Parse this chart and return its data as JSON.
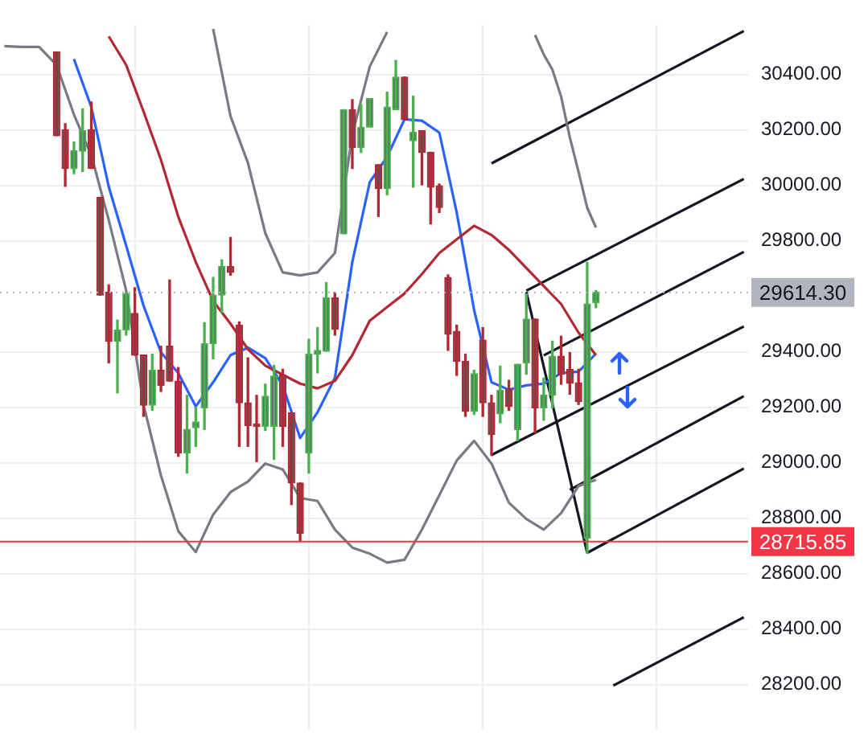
{
  "chart_data": {
    "type": "candlestick",
    "categories": [
      null,
      null,
      null,
      null,
      null,
      null,
      null,
      null,
      null,
      null,
      null,
      null,
      null,
      null,
      null,
      null,
      null,
      null,
      null,
      null,
      null,
      null,
      null,
      null,
      null,
      null,
      null,
      null,
      null,
      null,
      null,
      null,
      null,
      null,
      null,
      null,
      null,
      null,
      null,
      null,
      null,
      null,
      null,
      null,
      null,
      null,
      null,
      null,
      null,
      null,
      null,
      null,
      null,
      null,
      null,
      null,
      null,
      null,
      null,
      null,
      null,
      null,
      null,
      null,
      null,
      null,
      null,
      null,
      null,
      null,
      null,
      null,
      null,
      null,
      null,
      null,
      null,
      null,
      null,
      null,
      null,
      null,
      null,
      null,
      null,
      null
    ],
    "ohlc": [
      null,
      null,
      null,
      null,
      null,
      null,
      [
        30481,
        30481,
        30179,
        30179
      ],
      [
        30200,
        30222,
        29996,
        30061
      ],
      [
        30060,
        30156,
        30042,
        30125
      ],
      [
        30123,
        30276,
        30050,
        30197
      ],
      [
        30200,
        30300,
        30061,
        30061
      ],
      [
        29957,
        29957,
        29604,
        29604
      ],
      [
        29614,
        29641,
        29360,
        29438
      ],
      [
        29438,
        29514,
        29252,
        29478
      ],
      [
        29478,
        29610,
        29460,
        29610
      ],
      [
        29538,
        29631,
        29388,
        29388
      ],
      [
        29388,
        29388,
        29167,
        29207
      ],
      [
        29207,
        29391,
        29189,
        29333
      ],
      [
        29333,
        29420,
        29257,
        29279
      ],
      [
        29420,
        29659,
        29294,
        29294
      ],
      [
        29294,
        29343,
        29023,
        29035
      ],
      [
        29035,
        29243,
        28963,
        29120
      ],
      [
        29126,
        29198,
        29059,
        29147
      ],
      [
        29198,
        29505,
        29120,
        29429
      ],
      [
        29429,
        29668,
        29375,
        29604
      ],
      [
        29604,
        29731,
        29541,
        29707
      ],
      [
        29707,
        29812,
        29676,
        29686
      ],
      [
        29496,
        29508,
        29059,
        29216
      ],
      [
        29216,
        29378,
        29059,
        29134
      ],
      [
        29140,
        29243,
        29004,
        29131
      ],
      [
        29131,
        29283,
        29117,
        29240
      ],
      [
        29131,
        29351,
        29012,
        29312
      ],
      [
        29316,
        29337,
        29059,
        29131
      ],
      [
        29180,
        29180,
        28849,
        28927
      ],
      [
        28927,
        28927,
        28716,
        28746
      ],
      [
        29035,
        29445,
        28963,
        29391
      ],
      [
        29391,
        29487,
        29324,
        29405
      ],
      [
        29402,
        29649,
        29402,
        29595
      ],
      [
        29595,
        29614,
        29460,
        29481
      ],
      [
        29825,
        30273,
        29825,
        30273
      ],
      [
        30273,
        30309,
        30061,
        30137
      ],
      [
        30137,
        30291,
        30119,
        30210
      ],
      [
        30210,
        30313,
        30210,
        30313
      ],
      [
        30074,
        30074,
        29888,
        29988
      ],
      [
        29988,
        30336,
        29966,
        30282
      ],
      [
        30273,
        30450,
        30273,
        30390
      ],
      [
        30390,
        30390,
        30237,
        30237
      ],
      [
        30161,
        30321,
        29993,
        30191
      ],
      [
        30197,
        30197,
        30002,
        30119
      ],
      [
        30119,
        30119,
        29861,
        29993
      ],
      [
        29998,
        30005,
        29902,
        29920
      ],
      [
        29668,
        29677,
        29405,
        29463
      ],
      [
        29474,
        29496,
        29315,
        29366
      ],
      [
        29366,
        29391,
        29167,
        29185
      ],
      [
        29185,
        29333,
        29174,
        29321
      ],
      [
        29442,
        29487,
        29167,
        29216
      ],
      [
        29216,
        29243,
        29026,
        29102
      ],
      [
        29176,
        29348,
        29144,
        29261
      ],
      [
        29265,
        29297,
        29189,
        29203
      ],
      [
        29120,
        29355,
        29080,
        29355
      ],
      [
        29360,
        29608,
        29319,
        29518
      ],
      [
        29518,
        29518,
        29107,
        29198
      ],
      [
        29198,
        29306,
        29153,
        29243
      ],
      [
        29243,
        29438,
        29198,
        29384
      ],
      [
        29384,
        29456,
        29283,
        29319
      ],
      [
        29337,
        29397,
        29247,
        29286
      ],
      [
        29288,
        29337,
        29210,
        29221
      ],
      [
        28728,
        29722,
        28674,
        29572
      ],
      [
        29577,
        29620,
        29559,
        29614.3
      ],
      null,
      null,
      null,
      null,
      null,
      null,
      null,
      null,
      null,
      null,
      null,
      null,
      null,
      null,
      null,
      null,
      null
    ],
    "series": [
      {
        "type": "line",
        "color": "#787b86",
        "values": [
          30502,
          null,
          30499,
          null,
          30499,
          null,
          30434,
          null,
          30255,
          null,
          30108,
          null,
          29875,
          null,
          29621,
          null,
          29209,
          null,
          28954,
          null,
          28753,
          null,
          28678,
          null,
          28813,
          null,
          28894,
          null,
          28932,
          null,
          28997,
          null,
          28976,
          null,
          28873,
          null,
          28862,
          null,
          28759,
          null,
          28694,
          null,
          28672,
          null,
          28640,
          null,
          28650,
          null,
          28759,
          null,
          28883,
          null,
          29008,
          null,
          29079,
          null,
          28997,
          null,
          28856,
          null,
          28797,
          null,
          28759,
          null,
          28818,
          null,
          28916,
          null,
          28938,
          null,
          null,
          null,
          null,
          null,
          null,
          null,
          null,
          null,
          null,
          null,
          null,
          null,
          null,
          null,
          null,
          null
        ]
      },
      {
        "type": "line",
        "color": "#787b86",
        "values": [
          null,
          null,
          null,
          null,
          null,
          null,
          null,
          null,
          null,
          null,
          null,
          null,
          null,
          null,
          null,
          null,
          null,
          null,
          null,
          null,
          null,
          null,
          null,
          null,
          30564,
          null,
          30249,
          null,
          30081,
          null,
          29827,
          null,
          29686,
          null,
          29675,
          null,
          29686,
          null,
          29756,
          null,
          30184,
          null,
          30428,
          null,
          30553,
          null,
          null,
          null,
          null,
          null,
          null,
          null,
          null,
          null,
          null,
          null,
          null,
          null,
          null,
          null,
          null,
          null,
          null,
          null,
          null,
          null,
          null,
          null,
          null,
          null,
          null,
          null,
          null,
          null,
          null,
          null,
          null,
          null,
          null,
          null,
          null,
          null,
          null,
          null,
          null,
          null
        ]
      },
      {
        "type": "line",
        "color": "#787b86",
        "values": [
          null,
          null,
          null,
          null,
          null,
          null,
          null,
          null,
          null,
          null,
          null,
          null,
          null,
          null,
          null,
          null,
          null,
          null,
          null,
          null,
          null,
          null,
          null,
          null,
          null,
          null,
          null,
          null,
          null,
          null,
          null,
          null,
          null,
          null,
          null,
          null,
          null,
          null,
          null,
          null,
          null,
          null,
          null,
          null,
          null,
          null,
          null,
          null,
          null,
          null,
          null,
          null,
          null,
          null,
          null,
          null,
          null,
          null,
          null,
          null,
          null,
          30542,
          30472,
          30417,
          30320,
          30173,
          30049,
          29919,
          29848,
          null,
          null,
          null,
          null,
          null,
          null,
          null,
          null,
          null,
          null,
          null,
          null,
          null,
          null,
          null,
          null,
          null
        ]
      },
      {
        "type": "line",
        "color": "#b22833",
        "values": [
          null,
          null,
          null,
          null,
          null,
          null,
          null,
          null,
          null,
          null,
          null,
          null,
          30537,
          null,
          30434,
          null,
          30266,
          null,
          30092,
          null,
          29886,
          null,
          29724,
          null,
          29583,
          null,
          29501,
          null,
          29409,
          null,
          29350,
          null,
          29317,
          null,
          29285,
          null,
          29268,
          null,
          29295,
          null,
          29388,
          null,
          29512,
          null,
          29561,
          null,
          29610,
          null,
          29680,
          null,
          29756,
          null,
          29805,
          null,
          29854,
          null,
          29821,
          null,
          29767,
          null,
          29702,
          null,
          29637,
          null,
          29572,
          null,
          29469,
          null,
          29388,
          null,
          null,
          null,
          null,
          null,
          null,
          null,
          null,
          null,
          null,
          null,
          null,
          null,
          null,
          null,
          null,
          null
        ]
      },
      {
        "type": "line",
        "color": "#2962ff",
        "values": [
          null,
          null,
          null,
          null,
          null,
          null,
          null,
          null,
          30455,
          null,
          30282,
          null,
          29995,
          null,
          29783,
          null,
          29566,
          null,
          29398,
          null,
          29323,
          null,
          29203,
          null,
          29290,
          null,
          29388,
          null,
          29415,
          null,
          29377,
          null,
          29279,
          null,
          29089,
          null,
          29182,
          null,
          29306,
          null,
          29724,
          null,
          30011,
          null,
          30103,
          null,
          30238,
          null,
          30233,
          null,
          30190,
          null,
          29902,
          null,
          29550,
          null,
          29290,
          null,
          29263,
          null,
          29279,
          null,
          29285,
          null,
          29323,
          null,
          29328,
          null,
          29393,
          null,
          null,
          null,
          null,
          null,
          null,
          null,
          null,
          null,
          null,
          null,
          null,
          null,
          null,
          null,
          null,
          null
        ]
      },
      {
        "type": "line",
        "color": "#131722",
        "values": [
          null,
          null,
          null,
          null,
          null,
          null,
          null,
          null,
          null,
          null,
          null,
          null,
          null,
          null,
          null,
          null,
          null,
          null,
          null,
          null,
          null,
          null,
          null,
          null,
          null,
          null,
          null,
          null,
          null,
          null,
          null,
          null,
          null,
          null,
          null,
          null,
          null,
          null,
          null,
          null,
          null,
          null,
          null,
          null,
          null,
          null,
          null,
          null,
          null,
          null,
          null,
          null,
          null,
          null,
          null,
          null,
          30079,
          null,
          null,
          null,
          null,
          null,
          null,
          null,
          null,
          null,
          null,
          null,
          null,
          null,
          null,
          null,
          null,
          null,
          null,
          null,
          null,
          null,
          null,
          null,
          null,
          null,
          null,
          null,
          null,
          30556
        ]
      },
      {
        "type": "line",
        "color": "#131722",
        "values": [
          null,
          null,
          null,
          null,
          null,
          null,
          null,
          null,
          null,
          null,
          null,
          null,
          null,
          null,
          null,
          null,
          null,
          null,
          null,
          null,
          null,
          null,
          null,
          null,
          null,
          null,
          null,
          null,
          null,
          null,
          null,
          null,
          null,
          null,
          null,
          null,
          null,
          null,
          null,
          null,
          null,
          null,
          null,
          null,
          null,
          null,
          null,
          null,
          null,
          null,
          null,
          null,
          null,
          null,
          null,
          null,
          null,
          null,
          null,
          null,
          29620,
          null,
          null,
          null,
          null,
          null,
          null,
          null,
          null,
          null,
          null,
          null,
          null,
          null,
          null,
          null,
          null,
          null,
          null,
          null,
          null,
          null,
          null,
          null,
          null,
          30023
        ]
      },
      {
        "type": "line",
        "color": "#131722",
        "values": [
          null,
          null,
          null,
          null,
          null,
          null,
          null,
          null,
          null,
          null,
          null,
          null,
          null,
          null,
          null,
          null,
          null,
          null,
          null,
          null,
          null,
          null,
          null,
          null,
          null,
          null,
          null,
          null,
          null,
          null,
          null,
          null,
          null,
          null,
          null,
          null,
          null,
          null,
          null,
          null,
          null,
          null,
          null,
          null,
          null,
          null,
          null,
          null,
          null,
          null,
          null,
          null,
          null,
          null,
          null,
          null,
          null,
          null,
          null,
          null,
          null,
          null,
          29387,
          null,
          null,
          null,
          null,
          null,
          null,
          null,
          null,
          null,
          null,
          null,
          null,
          null,
          null,
          null,
          null,
          null,
          null,
          null,
          null,
          null,
          null,
          29760
        ]
      },
      {
        "type": "line",
        "color": "#131722",
        "values": [
          null,
          null,
          null,
          null,
          null,
          null,
          null,
          null,
          null,
          null,
          null,
          null,
          null,
          null,
          null,
          null,
          null,
          null,
          null,
          null,
          null,
          null,
          null,
          null,
          null,
          null,
          null,
          null,
          null,
          null,
          null,
          null,
          null,
          null,
          null,
          null,
          null,
          null,
          null,
          null,
          null,
          null,
          null,
          null,
          null,
          null,
          null,
          null,
          null,
          null,
          null,
          null,
          null,
          null,
          null,
          null,
          29028,
          null,
          null,
          null,
          null,
          null,
          null,
          null,
          null,
          null,
          null,
          null,
          null,
          null,
          null,
          null,
          null,
          null,
          null,
          null,
          null,
          null,
          null,
          null,
          null,
          null,
          null,
          null,
          null,
          29491
        ]
      },
      {
        "type": "line",
        "color": "#131722",
        "values": [
          null,
          null,
          null,
          null,
          null,
          null,
          null,
          null,
          null,
          null,
          null,
          null,
          null,
          null,
          null,
          null,
          null,
          null,
          null,
          null,
          null,
          null,
          null,
          null,
          null,
          null,
          null,
          null,
          null,
          null,
          null,
          null,
          null,
          null,
          null,
          null,
          null,
          null,
          null,
          null,
          null,
          null,
          null,
          null,
          null,
          null,
          null,
          null,
          null,
          null,
          null,
          null,
          null,
          null,
          null,
          null,
          null,
          null,
          null,
          null,
          null,
          null,
          null,
          null,
          null,
          28902,
          null,
          null,
          null,
          null,
          null,
          null,
          null,
          null,
          null,
          null,
          null,
          null,
          null,
          null,
          null,
          null,
          null,
          null,
          null,
          29240
        ]
      },
      {
        "type": "line",
        "color": "#131722",
        "values": [
          null,
          null,
          null,
          null,
          null,
          null,
          null,
          null,
          null,
          null,
          null,
          null,
          null,
          null,
          null,
          null,
          null,
          null,
          null,
          null,
          null,
          null,
          null,
          null,
          null,
          null,
          null,
          null,
          null,
          null,
          null,
          null,
          null,
          null,
          null,
          null,
          null,
          null,
          null,
          null,
          null,
          null,
          null,
          null,
          null,
          null,
          null,
          null,
          null,
          null,
          null,
          null,
          null,
          null,
          null,
          null,
          null,
          null,
          null,
          null,
          null,
          null,
          null,
          null,
          null,
          null,
          null,
          28675,
          null,
          null,
          null,
          null,
          null,
          null,
          null,
          null,
          null,
          null,
          null,
          null,
          null,
          null,
          null,
          null,
          null,
          28979
        ]
      },
      {
        "type": "line",
        "color": "#131722",
        "values": [
          null,
          null,
          null,
          null,
          null,
          null,
          null,
          null,
          null,
          null,
          null,
          null,
          null,
          null,
          null,
          null,
          null,
          null,
          null,
          null,
          null,
          null,
          null,
          null,
          null,
          null,
          null,
          null,
          null,
          null,
          null,
          null,
          null,
          null,
          null,
          null,
          null,
          null,
          null,
          null,
          null,
          null,
          null,
          null,
          null,
          null,
          null,
          null,
          null,
          null,
          null,
          null,
          null,
          null,
          null,
          null,
          null,
          null,
          null,
          null,
          null,
          null,
          null,
          null,
          null,
          null,
          null,
          null,
          null,
          null,
          28197,
          null,
          null,
          null,
          null,
          null,
          null,
          null,
          null,
          null,
          null,
          null,
          null,
          null,
          null,
          28443
        ]
      },
      {
        "type": "line",
        "color": "#131722",
        "values": [
          null,
          null,
          null,
          null,
          null,
          null,
          null,
          null,
          null,
          null,
          null,
          null,
          null,
          null,
          null,
          null,
          null,
          null,
          null,
          null,
          null,
          null,
          null,
          null,
          null,
          null,
          null,
          null,
          null,
          null,
          null,
          null,
          null,
          null,
          null,
          null,
          null,
          null,
          null,
          null,
          null,
          null,
          null,
          null,
          null,
          null,
          null,
          null,
          null,
          null,
          null,
          null,
          null,
          null,
          null,
          null,
          null,
          null,
          null,
          null,
          29615,
          null,
          null,
          null,
          null,
          null,
          null,
          28675,
          null,
          null,
          null,
          null,
          null,
          null,
          null,
          null,
          null,
          null,
          null,
          null,
          null,
          null,
          null,
          null,
          null,
          null
        ]
      }
    ],
    "ylim": [
      28038,
      30580
    ],
    "yticks": [
      {
        "value": 28200,
        "label": "28200.00"
      },
      {
        "value": 28400,
        "label": "28400.00"
      },
      {
        "value": 28600,
        "label": "28600.00"
      },
      {
        "value": 28800,
        "label": "28800.00"
      },
      {
        "value": 29000,
        "label": "29000.00"
      },
      {
        "value": 29200,
        "label": "29200.00"
      },
      {
        "value": 29400,
        "label": "29400.00"
      },
      {
        "value": 29800,
        "label": "29800.00"
      },
      {
        "value": 30000,
        "label": "30000.00"
      },
      {
        "value": 30200,
        "label": "30200.00"
      },
      {
        "value": 30400,
        "label": "30400.00"
      }
    ],
    "ref_lines": [
      {
        "axis": "y",
        "value": 29614.3,
        "label": "29614.30",
        "color": "#b2b5be",
        "line_style": "dotted"
      },
      {
        "axis": "y",
        "value": 28715.85,
        "label": "28715.85",
        "color": "#f23645",
        "line_style": "solid"
      }
    ],
    "grid": true,
    "tick_labels": "y"
  }
}
